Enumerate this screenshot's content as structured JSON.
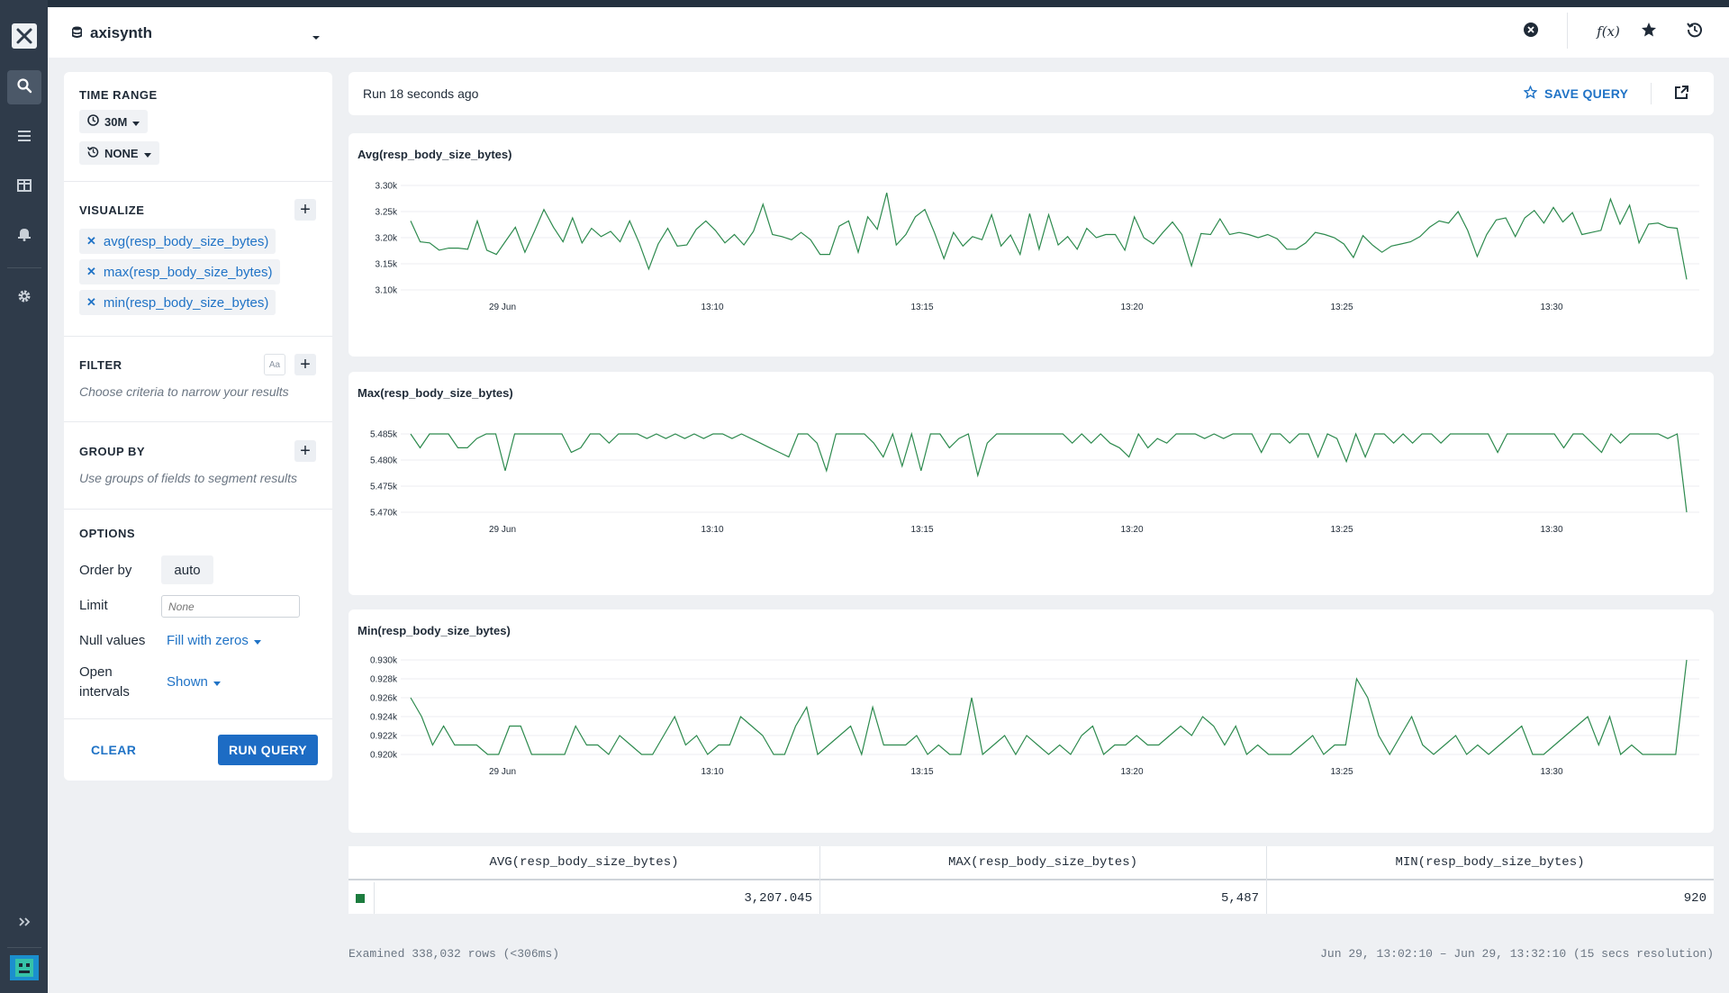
{
  "header": {
    "dataset": "axisynth",
    "icons": [
      "clear-icon",
      "function-icon",
      "star-icon",
      "history-icon"
    ],
    "function_label": "f(x)"
  },
  "panel": {
    "time_range": {
      "title": "TIME RANGE",
      "range": "30M",
      "compare": "NONE"
    },
    "visualize": {
      "title": "VISUALIZE",
      "items": [
        "avg(resp_body_size_bytes)",
        "max(resp_body_size_bytes)",
        "min(resp_body_size_bytes)"
      ]
    },
    "filter": {
      "title": "FILTER",
      "hint": "Choose criteria to narrow your results",
      "case_label": "Aa"
    },
    "group_by": {
      "title": "GROUP BY",
      "hint": "Use groups of fields to segment results"
    },
    "options": {
      "title": "OPTIONS",
      "order_by_label": "Order by",
      "order_by_value": "auto",
      "limit_label": "Limit",
      "limit_placeholder": "None",
      "null_values_label": "Null values",
      "null_values_value": "Fill with zeros",
      "open_intervals_label_1": "Open",
      "open_intervals_label_2": "intervals",
      "open_intervals_value": "Shown"
    },
    "clear_label": "CLEAR",
    "run_label": "RUN QUERY"
  },
  "runbar": {
    "status": "Run 18 seconds ago",
    "save_label": "SAVE QUERY"
  },
  "colors": {
    "series": "#2d8a4e",
    "accent": "#2073c6",
    "rail": "#2f3b4a"
  },
  "x_ticks": [
    "29 Jun",
    "13:10",
    "13:15",
    "13:20",
    "13:25",
    "13:30"
  ],
  "chart_data": [
    {
      "type": "line",
      "title": "Avg(resp_body_size_bytes)",
      "y_ticks": [
        "3.30k",
        "3.25k",
        "3.20k",
        "3.15k",
        "3.10k"
      ],
      "ylim": [
        3100,
        3300
      ],
      "values": [
        3232,
        3192,
        3190,
        3176,
        3180,
        3180,
        3178,
        3232,
        3176,
        3168,
        3194,
        3220,
        3172,
        3212,
        3254,
        3220,
        3192,
        3238,
        3190,
        3218,
        3202,
        3212,
        3192,
        3232,
        3190,
        3140,
        3188,
        3218,
        3184,
        3186,
        3216,
        3232,
        3214,
        3190,
        3206,
        3186,
        3212,
        3264,
        3206,
        3202,
        3196,
        3210,
        3196,
        3168,
        3168,
        3222,
        3232,
        3172,
        3240,
        3216,
        3286,
        3186,
        3206,
        3240,
        3254,
        3210,
        3160,
        3210,
        3184,
        3202,
        3196,
        3244,
        3184,
        3205,
        3168,
        3246,
        3178,
        3244,
        3186,
        3202,
        3178,
        3218,
        3200,
        3206,
        3206,
        3176,
        3240,
        3200,
        3188,
        3210,
        3230,
        3206,
        3146,
        3208,
        3206,
        3236,
        3206,
        3210,
        3206,
        3200,
        3206,
        3198,
        3178,
        3178,
        3190,
        3210,
        3206,
        3200,
        3188,
        3162,
        3204,
        3186,
        3172,
        3184,
        3188,
        3192,
        3202,
        3220,
        3232,
        3228,
        3250,
        3214,
        3164,
        3206,
        3234,
        3238,
        3202,
        3238,
        3252,
        3228,
        3258,
        3230,
        3248,
        3206,
        3210,
        3214,
        3274,
        3226,
        3262,
        3190,
        3226,
        3228,
        3220,
        3218,
        3120
      ]
    },
    {
      "type": "line",
      "title": "Max(resp_body_size_bytes)",
      "y_ticks": [
        "5.485k",
        "5.480k",
        "5.475k",
        "5.470k"
      ],
      "ylim": [
        5470,
        5487
      ],
      "values": [
        5487,
        5484,
        5487,
        5487,
        5487,
        5484,
        5484,
        5486,
        5487,
        5487,
        5479,
        5487,
        5487,
        5487,
        5487,
        5487,
        5487,
        5483,
        5484,
        5487,
        5487,
        5485,
        5487,
        5487,
        5487,
        5486,
        5487,
        5486,
        5487,
        5486,
        5487,
        5486,
        5487,
        5487,
        5486,
        5487,
        5486,
        5485,
        5484,
        5483,
        5482,
        5487,
        5487,
        5485,
        5479,
        5487,
        5487,
        5487,
        5487,
        5485,
        5482,
        5487,
        5480,
        5487,
        5479,
        5487,
        5487,
        5484,
        5486,
        5487,
        5478,
        5485,
        5487,
        5487,
        5487,
        5487,
        5487,
        5487,
        5487,
        5487,
        5485,
        5487,
        5485,
        5487,
        5485,
        5484,
        5482,
        5487,
        5484,
        5486,
        5485,
        5487,
        5487,
        5487,
        5486,
        5487,
        5486,
        5487,
        5487,
        5487,
        5483,
        5487,
        5487,
        5485,
        5487,
        5487,
        5482,
        5487,
        5486,
        5481,
        5487,
        5482,
        5487,
        5487,
        5485,
        5487,
        5485,
        5487,
        5487,
        5485,
        5487,
        5487,
        5487,
        5487,
        5487,
        5483,
        5487,
        5487,
        5487,
        5487,
        5487,
        5487,
        5484,
        5487,
        5487,
        5485,
        5483,
        5487,
        5485,
        5487,
        5487,
        5487,
        5487,
        5486,
        5487,
        5470
      ]
    },
    {
      "type": "line",
      "title": "Min(resp_body_size_bytes)",
      "y_ticks": [
        "0.930k",
        "0.928k",
        "0.926k",
        "0.924k",
        "0.922k",
        "0.920k"
      ],
      "ylim": [
        920,
        930
      ],
      "values": [
        926,
        924,
        921,
        923,
        921,
        921,
        921,
        920,
        920,
        923,
        923,
        920,
        920,
        920,
        920,
        923,
        921,
        921,
        920,
        922,
        921,
        920,
        920,
        922,
        924,
        921,
        922,
        920,
        921,
        921,
        924,
        923,
        922,
        920,
        920,
        923,
        925,
        920,
        921,
        922,
        923,
        920,
        925,
        921,
        921,
        921,
        922,
        920,
        921,
        920,
        920,
        926,
        920,
        921,
        922,
        920,
        922,
        921,
        920,
        921,
        920,
        922,
        923,
        920,
        921,
        921,
        922,
        921,
        921,
        922,
        923,
        922,
        924,
        923,
        921,
        923,
        920,
        921,
        920,
        920,
        920,
        921,
        922,
        920,
        921,
        921,
        928,
        926,
        922,
        920,
        922,
        924,
        921,
        920,
        921,
        922,
        920,
        921,
        920,
        921,
        922,
        923,
        920,
        920,
        921,
        922,
        923,
        924,
        921,
        924,
        920,
        921,
        920,
        920,
        920,
        920,
        930
      ],
      "x_offset": 20
    }
  ],
  "table": {
    "headers": [
      "AVG(resp_body_size_bytes)",
      "MAX(resp_body_size_bytes)",
      "MIN(resp_body_size_bytes)"
    ],
    "values": [
      "3,207.045",
      "5,487",
      "920"
    ]
  },
  "footer": {
    "examined": "Examined 338,032 rows (<306ms)",
    "range": "Jun 29, 13:02:10 – Jun 29, 13:32:10 (15 secs resolution)"
  }
}
